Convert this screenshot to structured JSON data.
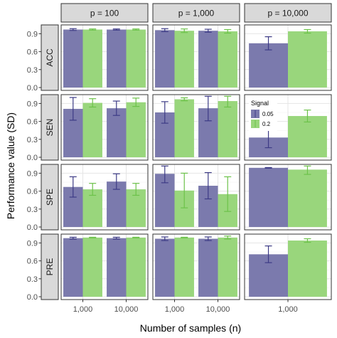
{
  "chart_data": {
    "type": "bar",
    "xlabel": "Number of samples (n)",
    "ylabel": "Performance value (SD)",
    "ylim": [
      0,
      1.0
    ],
    "y_ticks": [
      0.0,
      0.3,
      0.6,
      0.9
    ],
    "y_tick_labels": [
      "0.0",
      "0.3",
      "0.6",
      "0.9"
    ],
    "grid": true,
    "legend": {
      "title": "Signal",
      "position": "inside facet SEN, p = 10,000 (top-left)",
      "items": [
        {
          "label": "0.05",
          "color": "#7b7aad"
        },
        {
          "label": "0.2",
          "color": "#99d67c"
        }
      ]
    },
    "columns": [
      {
        "label": "p = 100",
        "categories": [
          "1,000",
          "10,000"
        ]
      },
      {
        "label": "p = 1,000",
        "categories": [
          "1,000",
          "10,000"
        ]
      },
      {
        "label": "p = 10,000",
        "categories": [
          "1,000"
        ]
      }
    ],
    "rows": [
      "ACC",
      "SEN",
      "SPE",
      "PRE"
    ],
    "series_names": [
      "0.05",
      "0.2"
    ],
    "panels": [
      [
        [
          {
            "v": 0.97,
            "sd": 0.015
          },
          {
            "v": 0.97,
            "sd": 0.01
          },
          {
            "v": 0.97,
            "sd": 0.01
          },
          {
            "v": 0.97,
            "sd": 0.01
          }
        ],
        [
          {
            "v": 0.96,
            "sd": 0.025
          },
          {
            "v": 0.95,
            "sd": 0.03
          },
          {
            "v": 0.95,
            "sd": 0.025
          },
          {
            "v": 0.94,
            "sd": 0.03
          }
        ],
        [
          {
            "v": 0.74,
            "sd": 0.11
          },
          {
            "v": 0.94,
            "sd": 0.03
          }
        ]
      ],
      [
        [
          {
            "v": 0.81,
            "sd": 0.19
          },
          {
            "v": 0.91,
            "sd": 0.07
          },
          {
            "v": 0.82,
            "sd": 0.12
          },
          {
            "v": 0.92,
            "sd": 0.07
          }
        ],
        [
          {
            "v": 0.75,
            "sd": 0.18
          },
          {
            "v": 0.97,
            "sd": 0.025
          },
          {
            "v": 0.82,
            "sd": 0.21
          },
          {
            "v": 0.94,
            "sd": 0.1
          }
        ],
        [
          {
            "v": 0.33,
            "sd": 0.17
          },
          {
            "v": 0.69,
            "sd": 0.1
          }
        ]
      ],
      [
        [
          {
            "v": 0.67,
            "sd": 0.17
          },
          {
            "v": 0.63,
            "sd": 0.1
          },
          {
            "v": 0.76,
            "sd": 0.13
          },
          {
            "v": 0.63,
            "sd": 0.1
          }
        ],
        [
          {
            "v": 0.89,
            "sd": 0.15
          },
          {
            "v": 0.61,
            "sd": 0.29
          },
          {
            "v": 0.69,
            "sd": 0.22
          },
          {
            "v": 0.55,
            "sd": 0.29
          }
        ],
        [
          {
            "v": 0.99,
            "sd": 0.005
          },
          {
            "v": 0.96,
            "sd": 0.08
          }
        ]
      ],
      [
        [
          {
            "v": 0.98,
            "sd": 0.015
          },
          {
            "v": 0.99,
            "sd": 0.005
          },
          {
            "v": 0.98,
            "sd": 0.015
          },
          {
            "v": 0.99,
            "sd": 0.005
          }
        ],
        [
          {
            "v": 0.97,
            "sd": 0.03
          },
          {
            "v": 0.99,
            "sd": 0.005
          },
          {
            "v": 0.97,
            "sd": 0.03
          },
          {
            "v": 0.99,
            "sd": 0.025
          }
        ],
        [
          {
            "v": 0.71,
            "sd": 0.14
          },
          {
            "v": 0.94,
            "sd": 0.03
          }
        ]
      ]
    ]
  }
}
